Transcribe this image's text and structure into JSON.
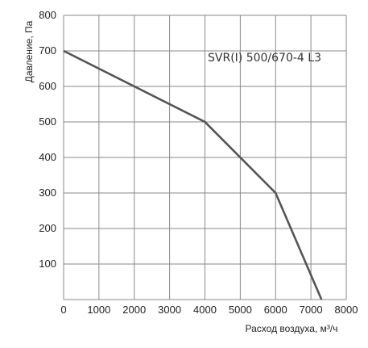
{
  "chart_data": {
    "type": "line",
    "title": "",
    "xlabel": "Расход воздуха, м³/ч",
    "ylabel": "Давление, Па",
    "annotation": "SVR(I) 500/670-4 L3",
    "xlim": [
      0,
      8000
    ],
    "ylim": [
      0,
      800
    ],
    "xticks": [
      "0",
      "1000",
      "2000",
      "3000",
      "4000",
      "5000",
      "6000",
      "7000",
      "8000"
    ],
    "yticks": [
      "100",
      "200",
      "300",
      "400",
      "500",
      "600",
      "700",
      "800"
    ],
    "grid": true,
    "series": [
      {
        "x": [
          0,
          4000,
          6000,
          7300
        ],
        "y": [
          700,
          500,
          300,
          0
        ],
        "color": "#555555"
      }
    ]
  }
}
